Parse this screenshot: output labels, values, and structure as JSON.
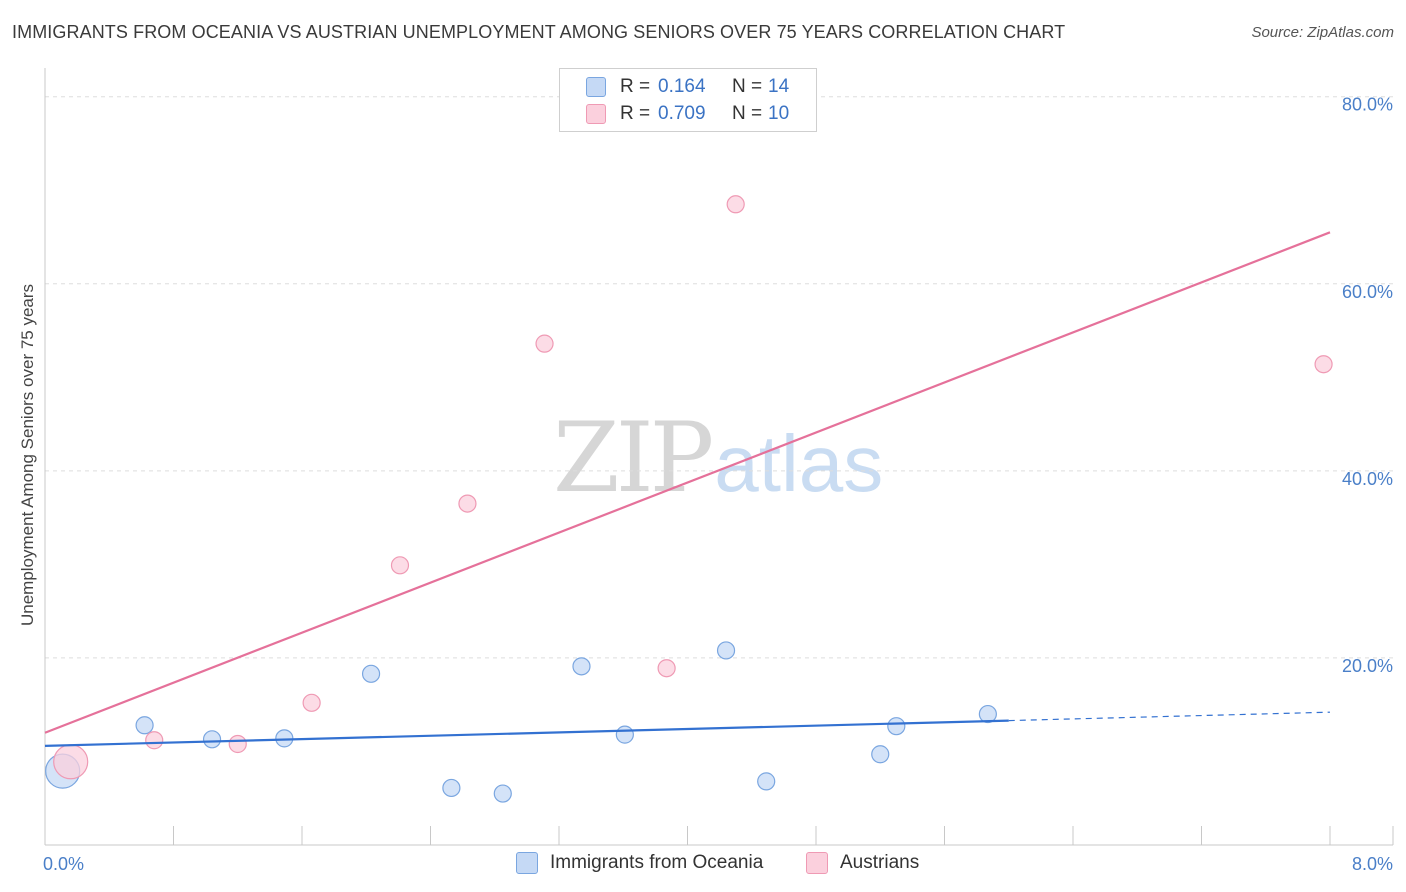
{
  "title": "IMMIGRANTS FROM OCEANIA VS AUSTRIAN UNEMPLOYMENT AMONG SENIORS OVER 75 YEARS CORRELATION CHART",
  "source": "Source: ZipAtlas.com",
  "watermark": {
    "zip": "ZIP",
    "atlas": "atlas"
  },
  "legend_top": [
    {
      "r_label": "R =",
      "r_value": "0.164",
      "n_label": "N =",
      "n_value": "14"
    },
    {
      "r_label": "R =",
      "r_value": "0.709",
      "n_label": "N =",
      "n_value": "10"
    }
  ],
  "legend_bottom": [
    {
      "label": "Immigrants from Oceania"
    },
    {
      "label": "Austrians"
    }
  ],
  "colors": {
    "blue_fill": "#c5d9f5",
    "blue_stroke": "#7aa6e0",
    "blue_line": "#3371d1",
    "pink_fill": "#fbd0dd",
    "pink_stroke": "#ef9ab4",
    "pink_line": "#e5719a",
    "grid": "#dddddd",
    "tick_label": "#4a7fc8"
  },
  "chart_data": {
    "type": "scatter",
    "title": "IMMIGRANTS FROM OCEANIA VS AUSTRIAN UNEMPLOYMENT AMONG SENIORS OVER 75 YEARS CORRELATION CHART",
    "xlabel": "",
    "ylabel": "Unemployment Among Seniors over 75 years",
    "xlim": [
      0,
      8
    ],
    "ylim": [
      0,
      82
    ],
    "x_tick_labels": [
      {
        "value": 0,
        "label": "0.0%"
      },
      {
        "value": 8,
        "label": "8.0%"
      }
    ],
    "y_tick_labels": [
      {
        "value": 20,
        "label": "20.0%"
      },
      {
        "value": 40,
        "label": "40.0%"
      },
      {
        "value": 60,
        "label": "60.0%"
      },
      {
        "value": 80,
        "label": "80.0%"
      }
    ],
    "series": [
      {
        "name": "Immigrants from Oceania",
        "color": "blue",
        "points": [
          {
            "x": 0.11,
            "y": 7.9,
            "size": "large"
          },
          {
            "x": 0.62,
            "y": 12.8
          },
          {
            "x": 1.04,
            "y": 11.3
          },
          {
            "x": 1.49,
            "y": 11.4
          },
          {
            "x": 2.03,
            "y": 18.3
          },
          {
            "x": 2.53,
            "y": 6.1
          },
          {
            "x": 2.85,
            "y": 5.5
          },
          {
            "x": 3.34,
            "y": 19.1
          },
          {
            "x": 3.61,
            "y": 11.8
          },
          {
            "x": 4.24,
            "y": 20.8
          },
          {
            "x": 4.49,
            "y": 6.8
          },
          {
            "x": 5.2,
            "y": 9.7
          },
          {
            "x": 5.3,
            "y": 12.7
          },
          {
            "x": 5.87,
            "y": 14.0
          }
        ],
        "trend": {
          "x0": 0.0,
          "y0": 10.6,
          "x1": 6.0,
          "y1": 13.3,
          "dashed_to_x": 8.0,
          "dashed_to_y": 14.2
        }
      },
      {
        "name": "Austrians",
        "color": "pink",
        "points": [
          {
            "x": 0.16,
            "y": 8.9,
            "size": "large"
          },
          {
            "x": 0.68,
            "y": 11.2
          },
          {
            "x": 1.2,
            "y": 10.8
          },
          {
            "x": 1.66,
            "y": 15.2
          },
          {
            "x": 2.21,
            "y": 29.9
          },
          {
            "x": 2.63,
            "y": 36.5
          },
          {
            "x": 3.11,
            "y": 53.6
          },
          {
            "x": 3.87,
            "y": 18.9
          },
          {
            "x": 4.3,
            "y": 68.5
          },
          {
            "x": 7.96,
            "y": 51.4
          }
        ],
        "trend": {
          "x0": 0.0,
          "y0": 12.0,
          "x1": 8.0,
          "y1": 65.5
        }
      }
    ]
  }
}
